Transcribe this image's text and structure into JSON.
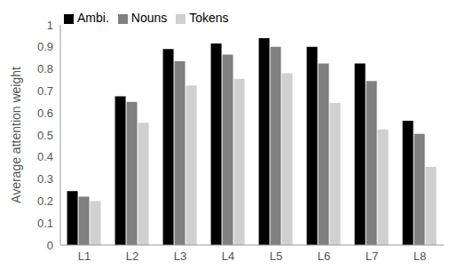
{
  "chart_data": {
    "type": "bar",
    "y_label": "Average attention weight",
    "categories": [
      "L1",
      "L2",
      "L3",
      "L4",
      "L5",
      "L6",
      "L7",
      "L8"
    ],
    "series": [
      {
        "name": "Ambi.",
        "color": "#000000",
        "values": [
          0.245,
          0.675,
          0.89,
          0.915,
          0.94,
          0.9,
          0.825,
          0.565
        ]
      },
      {
        "name": "Nouns",
        "color": "#808080",
        "values": [
          0.22,
          0.65,
          0.835,
          0.865,
          0.9,
          0.825,
          0.745,
          0.505
        ]
      },
      {
        "name": "Tokens",
        "color": "#d0d0d0",
        "values": [
          0.2,
          0.555,
          0.725,
          0.755,
          0.78,
          0.645,
          0.525,
          0.355
        ]
      }
    ],
    "ylim": [
      0,
      1
    ],
    "yticks": [
      0,
      0.1,
      0.2,
      0.3,
      0.4,
      0.5,
      0.6,
      0.7,
      0.8,
      0.9,
      1
    ],
    "grid": false,
    "legend": "upper left"
  }
}
